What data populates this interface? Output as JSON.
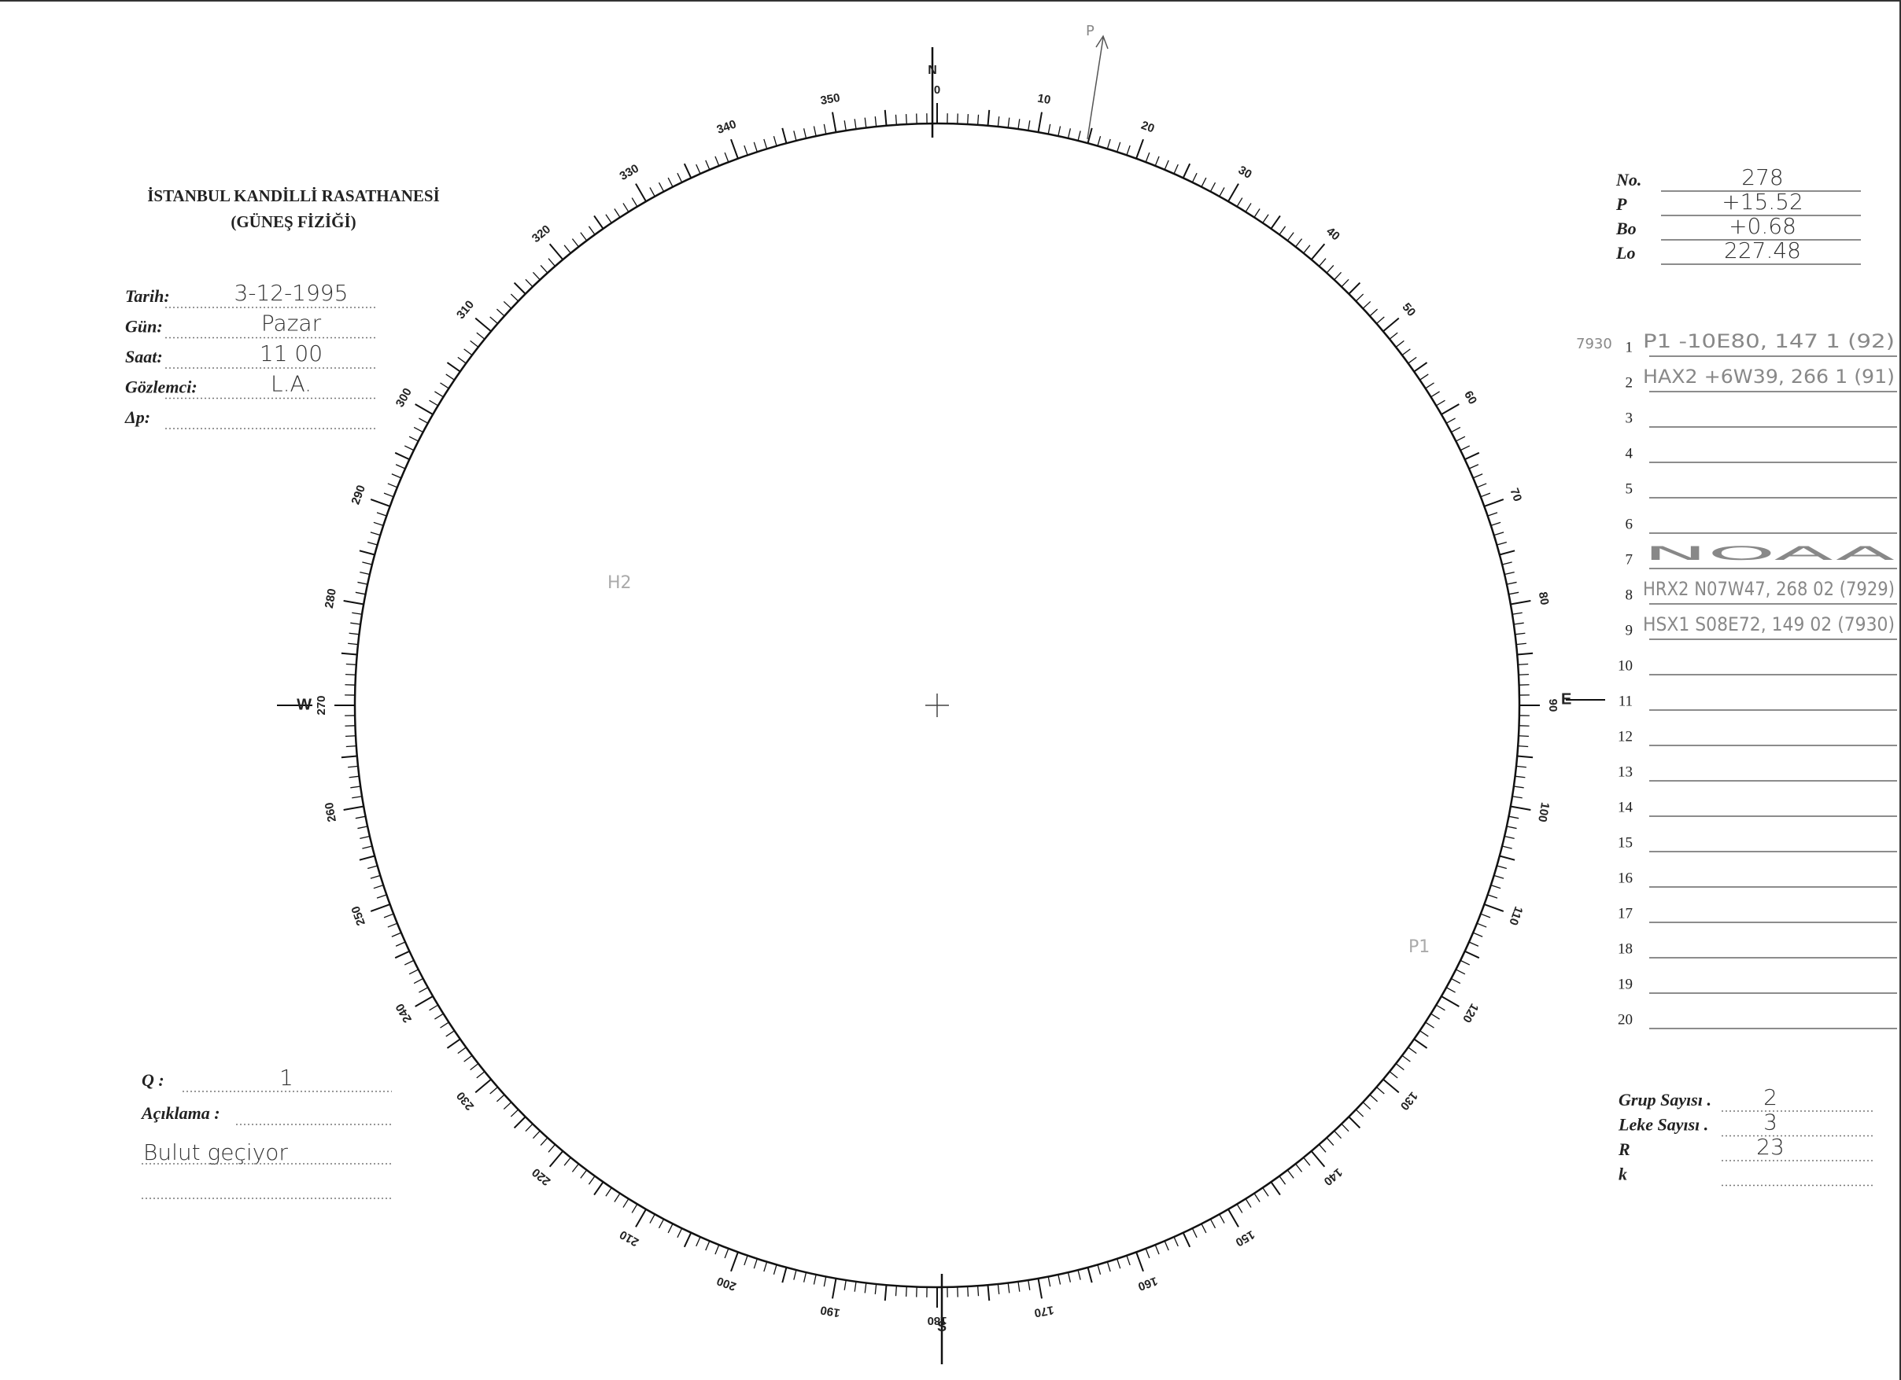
{
  "header": {
    "institution": "İSTANBUL KANDİLLİ RASATHANESİ",
    "department": "(GÜNEŞ FİZİĞİ)"
  },
  "fields": [
    {
      "label": "Tarih:",
      "value": "3-12-1995"
    },
    {
      "label": "Gün:",
      "value": "Pazar"
    },
    {
      "label": "Saat:",
      "value": "11 00"
    },
    {
      "label": "Gözlemci:",
      "value": "L.A."
    },
    {
      "label": "Δp:"
    }
  ],
  "parameters": [
    {
      "label": "No.",
      "value": "278"
    },
    {
      "label": "P",
      "value": "+15.52"
    },
    {
      "label": "Bo",
      "value": "+0.68"
    },
    {
      "label": "Lo",
      "value": "227.48"
    }
  ],
  "groups": {
    "margin_note": "7930",
    "rows": [
      {
        "number": "1",
        "entry": "P1 -10E80, 147   1   (92)"
      },
      {
        "number": "2",
        "entry": "HAX2 +6W39, 266   1   (91)"
      },
      {
        "number": "3"
      },
      {
        "number": "4"
      },
      {
        "number": "5"
      },
      {
        "number": "6"
      },
      {
        "number": "7",
        "entry": "NOAA"
      },
      {
        "number": "8",
        "entry": "HRX2 N07W47, 268 02 (7929)"
      },
      {
        "number": "9",
        "entry": "HSX1 S08E72, 149 02 (7930)"
      },
      {
        "number": "10"
      },
      {
        "number": "11"
      },
      {
        "number": "12"
      },
      {
        "number": "13"
      },
      {
        "number": "14"
      },
      {
        "number": "15"
      },
      {
        "number": "16"
      },
      {
        "number": "17"
      },
      {
        "number": "18"
      },
      {
        "number": "19"
      },
      {
        "number": "20"
      }
    ]
  },
  "summary": [
    {
      "label": "Grup Sayısı .",
      "value": "2"
    },
    {
      "label": "Leke Sayısı .",
      "value": "3"
    },
    {
      "label": "R",
      "value": "23"
    },
    {
      "label": "k"
    }
  ],
  "notes": {
    "q_label": "Q :",
    "q_value": "1",
    "remarks_label": "Açıklama :",
    "remarks_value": "Bulut geçiyor"
  },
  "dial": {
    "labels": [
      "0",
      "10",
      "20",
      "30",
      "40",
      "50",
      "60",
      "70",
      "80",
      "90",
      "100",
      "110",
      "120",
      "130",
      "140",
      "150",
      "160",
      "170",
      "180",
      "190",
      "200",
      "210",
      "220",
      "230",
      "240",
      "250",
      "260",
      "270",
      "280",
      "290",
      "300",
      "310",
      "320",
      "330",
      "340",
      "350"
    ],
    "cardinals": {
      "north": "N",
      "east": "E",
      "south": "S",
      "west": "W"
    }
  },
  "annotations": {
    "pole": "P",
    "sketch_left": "H2",
    "sketch_right": "P1"
  }
}
